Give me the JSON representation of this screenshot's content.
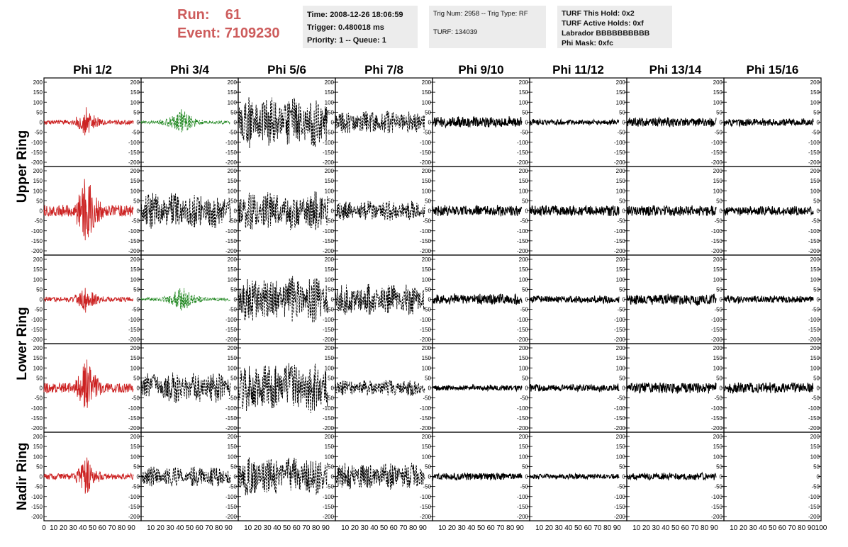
{
  "header": {
    "run_label": "Run:",
    "run_value": "61",
    "event_label": "Event:",
    "event_value": "7109230",
    "time": "Time: 2008-12-26 18:06:59",
    "trigger": "Trigger: 0.480018 ms",
    "priority": "Priority: 1 -- Queue: 1",
    "trig_num": "Trig Num: 2958 -- Trig Type: RF",
    "turf": "TURF: 134039",
    "turf_this_hold": "TURF This Hold: 0x2",
    "turf_active_holds": "TURF Active Holds: 0xf",
    "labrador": "Labrador BBBBBBBBBB",
    "phi_mask": "Phi Mask: 0xfc"
  },
  "chart_data": {
    "type": "line",
    "columns": [
      "Phi 1/2",
      "Phi 3/4",
      "Phi 5/6",
      "Phi 7/8",
      "Phi 9/10",
      "Phi 11/12",
      "Phi 13/14",
      "Phi 15/16"
    ],
    "ring_labels": [
      "Upper Ring",
      "Lower Ring",
      "Nadir Ring"
    ],
    "rows": 5,
    "ylim": [
      -200,
      200
    ],
    "y_ticks": [
      -200,
      -150,
      -100,
      -50,
      0,
      50,
      100,
      150,
      200
    ],
    "y_tick_labels": [
      "-200",
      "-150",
      "-100",
      "-50",
      "0",
      "50",
      "100",
      "150",
      "200"
    ],
    "xlim": [
      0,
      100
    ],
    "x_tick_labels": [
      "0",
      "10",
      "20",
      "30",
      "40",
      "50",
      "60",
      "70",
      "80",
      "90",
      "100"
    ],
    "grid": false,
    "colors": {
      "triggered": "#cc2222",
      "secondary": "#228822",
      "default": "#000000"
    },
    "panel_styles": [
      [
        "red",
        "green",
        "dash",
        "dash",
        "solid",
        "solid",
        "solid",
        "solid"
      ],
      [
        "red",
        "dash",
        "dash",
        "dash",
        "solid",
        "solid",
        "solid",
        "solid"
      ],
      [
        "red",
        "green",
        "dash",
        "dash",
        "solid",
        "solid",
        "solid",
        "solid"
      ],
      [
        "red",
        "dash",
        "dash",
        "dash",
        "solid",
        "solid",
        "solid",
        "solid"
      ],
      [
        "red",
        "dash",
        "dash",
        "dash",
        "solid",
        "solid",
        "solid",
        "blank"
      ]
    ],
    "panel_amplitudes": [
      [
        80,
        70,
        130,
        60,
        30,
        15,
        25,
        20
      ],
      [
        200,
        90,
        100,
        50,
        30,
        30,
        30,
        25
      ],
      [
        80,
        70,
        120,
        80,
        30,
        20,
        30,
        20
      ],
      [
        160,
        80,
        130,
        40,
        15,
        20,
        30,
        30
      ],
      [
        100,
        50,
        100,
        70,
        20,
        15,
        20,
        15
      ]
    ],
    "pulse_center_x": 40
  }
}
